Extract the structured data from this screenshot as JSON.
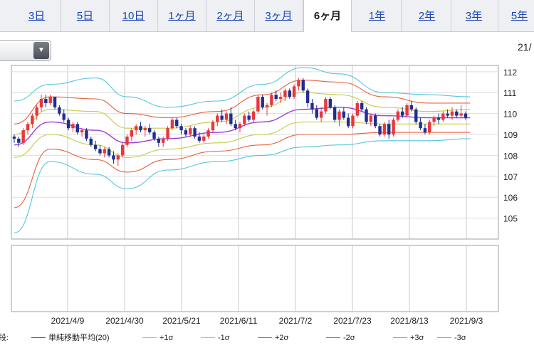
{
  "tabs": [
    {
      "label": "3日",
      "active": false
    },
    {
      "label": "5日",
      "active": false
    },
    {
      "label": "10日",
      "active": false
    },
    {
      "label": "1ヶ月",
      "active": false
    },
    {
      "label": "2ヶ月",
      "active": false
    },
    {
      "label": "3ヶ月",
      "active": false
    },
    {
      "label": "6ヶ月",
      "active": true
    },
    {
      "label": "1年",
      "active": false
    },
    {
      "label": "2年",
      "active": false
    },
    {
      "label": "3年",
      "active": false
    },
    {
      "label": "5年",
      "active": false
    }
  ],
  "header": {
    "date_label": "21/"
  },
  "dropdown": {
    "icon": "triangle-down-icon"
  },
  "legend": {
    "prefix": "段:",
    "items": [
      {
        "label": "単純移動平均(20)",
        "color": "#9a3dd6"
      },
      {
        "label": "+1σ",
        "color": "#c2cc4a"
      },
      {
        "label": "-1σ",
        "color": "#c2cc4a"
      },
      {
        "label": "+2σ",
        "color": "#e8603c"
      },
      {
        "label": "-2σ",
        "color": "#e8603c"
      },
      {
        "label": "+3σ",
        "color": "#54c6dc"
      },
      {
        "label": "-3σ",
        "color": "#54c6dc"
      }
    ]
  },
  "colors": {
    "up_candle": "#e8373c",
    "down_candle": "#1f2e8f",
    "grid": "#c8c8c8",
    "sma": "#9a3dd6",
    "sigma1": "#c2cc4a",
    "sigma2": "#e8603c",
    "sigma3": "#54c6dc"
  },
  "chart_data": {
    "type": "candlestick",
    "title": "",
    "xlabel": "",
    "ylabel": "",
    "ylim": [
      104,
      112.3
    ],
    "y_ticks": [
      105,
      106,
      107,
      108,
      109,
      110,
      111,
      112
    ],
    "x_ticks": [
      "2021/4/9",
      "2021/4/30",
      "2021/5/21",
      "2021/6/11",
      "2021/7/2",
      "2021/7/23",
      "2021/8/13",
      "2021/9/3"
    ],
    "grid": true,
    "ohlc": [
      [
        108.9,
        109.0,
        108.6,
        108.8
      ],
      [
        108.8,
        108.9,
        108.4,
        108.6
      ],
      [
        108.6,
        109.3,
        108.5,
        109.2
      ],
      [
        109.2,
        109.6,
        109.0,
        109.5
      ],
      [
        109.5,
        110.0,
        109.3,
        109.9
      ],
      [
        109.9,
        110.4,
        109.7,
        110.3
      ],
      [
        110.3,
        110.9,
        110.1,
        110.7
      ],
      [
        110.7,
        110.9,
        110.3,
        110.5
      ],
      [
        110.5,
        110.9,
        110.4,
        110.8
      ],
      [
        110.8,
        110.8,
        110.2,
        110.3
      ],
      [
        110.3,
        110.4,
        109.9,
        110.0
      ],
      [
        110.0,
        110.2,
        109.6,
        109.7
      ],
      [
        109.7,
        109.8,
        109.2,
        109.3
      ],
      [
        109.3,
        109.6,
        109.1,
        109.5
      ],
      [
        109.5,
        109.6,
        109.0,
        109.1
      ],
      [
        109.1,
        109.3,
        108.9,
        109.2
      ],
      [
        109.2,
        109.3,
        108.7,
        108.8
      ],
      [
        108.8,
        108.9,
        108.4,
        108.5
      ],
      [
        108.5,
        108.7,
        108.2,
        108.3
      ],
      [
        108.3,
        108.5,
        108.0,
        108.1
      ],
      [
        108.1,
        108.4,
        107.9,
        108.3
      ],
      [
        108.3,
        108.4,
        107.9,
        108.0
      ],
      [
        108.0,
        108.2,
        107.6,
        107.8
      ],
      [
        107.8,
        108.1,
        107.5,
        108.0
      ],
      [
        108.0,
        108.6,
        107.9,
        108.5
      ],
      [
        108.5,
        109.0,
        108.4,
        108.9
      ],
      [
        108.9,
        109.3,
        108.7,
        109.2
      ],
      [
        109.2,
        109.5,
        109.0,
        109.4
      ],
      [
        109.4,
        109.6,
        109.1,
        109.2
      ],
      [
        109.2,
        109.4,
        108.9,
        109.3
      ],
      [
        109.3,
        109.5,
        109.0,
        109.1
      ],
      [
        109.1,
        109.2,
        108.7,
        108.8
      ],
      [
        108.8,
        108.9,
        108.4,
        108.6
      ],
      [
        108.6,
        108.9,
        108.4,
        108.8
      ],
      [
        108.8,
        109.4,
        108.7,
        109.3
      ],
      [
        109.3,
        109.8,
        109.2,
        109.7
      ],
      [
        109.7,
        109.8,
        109.3,
        109.4
      ],
      [
        109.4,
        109.5,
        109.0,
        109.2
      ],
      [
        109.2,
        109.3,
        108.9,
        109.0
      ],
      [
        109.0,
        109.4,
        108.9,
        109.3
      ],
      [
        109.3,
        109.4,
        108.8,
        108.9
      ],
      [
        108.9,
        109.1,
        108.6,
        108.7
      ],
      [
        108.7,
        109.0,
        108.6,
        108.9
      ],
      [
        108.9,
        109.3,
        108.8,
        109.2
      ],
      [
        109.2,
        109.7,
        109.1,
        109.6
      ],
      [
        109.6,
        110.0,
        109.4,
        109.9
      ],
      [
        109.9,
        110.2,
        109.6,
        109.7
      ],
      [
        109.7,
        110.1,
        109.5,
        110.0
      ],
      [
        110.0,
        110.3,
        109.4,
        109.5
      ],
      [
        109.5,
        109.7,
        109.2,
        109.3
      ],
      [
        109.3,
        109.6,
        109.1,
        109.5
      ],
      [
        109.5,
        110.0,
        109.4,
        109.9
      ],
      [
        109.9,
        110.1,
        109.6,
        109.7
      ],
      [
        109.7,
        110.2,
        109.6,
        110.1
      ],
      [
        110.1,
        110.9,
        110.0,
        110.8
      ],
      [
        110.8,
        110.9,
        110.2,
        110.3
      ],
      [
        110.3,
        110.5,
        109.9,
        110.4
      ],
      [
        110.4,
        111.0,
        110.3,
        110.9
      ],
      [
        110.9,
        111.1,
        110.6,
        110.7
      ],
      [
        110.7,
        111.0,
        110.5,
        110.8
      ],
      [
        110.8,
        111.2,
        110.6,
        111.1
      ],
      [
        111.1,
        111.2,
        110.7,
        110.8
      ],
      [
        110.8,
        111.4,
        110.7,
        111.3
      ],
      [
        111.3,
        111.7,
        111.1,
        111.6
      ],
      [
        111.6,
        111.7,
        111.0,
        111.1
      ],
      [
        111.1,
        111.2,
        110.3,
        110.5
      ],
      [
        110.5,
        110.7,
        110.0,
        110.2
      ],
      [
        110.2,
        110.4,
        109.7,
        109.8
      ],
      [
        109.8,
        110.3,
        109.6,
        110.1
      ],
      [
        110.1,
        110.8,
        110.0,
        110.7
      ],
      [
        110.7,
        110.8,
        110.2,
        110.3
      ],
      [
        110.3,
        110.4,
        109.6,
        109.7
      ],
      [
        109.7,
        110.2,
        109.4,
        110.1
      ],
      [
        110.1,
        110.3,
        109.7,
        109.8
      ],
      [
        109.8,
        110.0,
        109.3,
        109.4
      ],
      [
        109.4,
        110.0,
        109.3,
        109.9
      ],
      [
        109.9,
        110.6,
        109.8,
        110.5
      ],
      [
        110.5,
        110.6,
        110.1,
        110.2
      ],
      [
        110.2,
        110.3,
        109.5,
        109.6
      ],
      [
        109.6,
        110.0,
        109.4,
        109.9
      ],
      [
        109.9,
        110.0,
        109.3,
        109.4
      ],
      [
        109.4,
        109.5,
        108.9,
        109.0
      ],
      [
        109.0,
        109.6,
        108.9,
        109.5
      ],
      [
        109.5,
        109.7,
        108.8,
        109.0
      ],
      [
        109.0,
        109.8,
        108.9,
        109.7
      ],
      [
        109.7,
        110.2,
        109.6,
        110.1
      ],
      [
        110.1,
        110.3,
        109.8,
        109.9
      ],
      [
        109.9,
        110.5,
        109.8,
        110.4
      ],
      [
        110.4,
        110.6,
        110.1,
        110.2
      ],
      [
        110.2,
        110.3,
        109.5,
        109.6
      ],
      [
        109.6,
        109.8,
        109.2,
        109.3
      ],
      [
        109.3,
        109.5,
        109.0,
        109.1
      ],
      [
        109.1,
        109.7,
        109.0,
        109.6
      ],
      [
        109.6,
        109.9,
        109.4,
        109.8
      ],
      [
        109.8,
        110.0,
        109.5,
        109.7
      ],
      [
        109.7,
        110.1,
        109.6,
        110.0
      ],
      [
        110.0,
        110.2,
        109.8,
        109.9
      ],
      [
        109.9,
        110.3,
        109.7,
        110.1
      ],
      [
        110.1,
        110.2,
        109.8,
        109.9
      ],
      [
        109.9,
        110.4,
        109.8,
        110.0
      ],
      [
        110.0,
        110.1,
        109.7,
        109.8
      ]
    ],
    "bands": {
      "sma_20": [
        [
          0,
          108.5
        ],
        [
          8,
          109.6
        ],
        [
          18,
          109.2
        ],
        [
          25,
          108.6
        ],
        [
          34,
          108.8
        ],
        [
          45,
          109.1
        ],
        [
          55,
          109.6
        ],
        [
          64,
          110.2
        ],
        [
          72,
          110.3
        ],
        [
          82,
          109.9
        ],
        [
          92,
          109.8
        ],
        [
          101,
          109.8
        ]
      ],
      "plus_1s": [
        [
          0,
          109.0
        ],
        [
          8,
          110.2
        ],
        [
          18,
          110.1
        ],
        [
          25,
          109.3
        ],
        [
          34,
          109.3
        ],
        [
          45,
          109.6
        ],
        [
          55,
          110.3
        ],
        [
          64,
          111.0
        ],
        [
          72,
          110.9
        ],
        [
          82,
          110.3
        ],
        [
          92,
          110.1
        ],
        [
          101,
          110.2
        ]
      ],
      "minus_1s": [
        [
          0,
          107.9
        ],
        [
          8,
          109.0
        ],
        [
          18,
          108.5
        ],
        [
          25,
          107.9
        ],
        [
          34,
          108.3
        ],
        [
          45,
          108.6
        ],
        [
          55,
          109.0
        ],
        [
          64,
          109.6
        ],
        [
          72,
          109.6
        ],
        [
          82,
          109.5
        ],
        [
          92,
          109.5
        ],
        [
          101,
          109.5
        ]
      ],
      "plus_2s": [
        [
          0,
          109.5
        ],
        [
          8,
          110.8
        ],
        [
          18,
          110.7
        ],
        [
          25,
          110.0
        ],
        [
          34,
          109.8
        ],
        [
          45,
          110.1
        ],
        [
          55,
          110.9
        ],
        [
          64,
          111.6
        ],
        [
          72,
          111.5
        ],
        [
          82,
          110.8
        ],
        [
          92,
          110.5
        ],
        [
          101,
          110.5
        ]
      ],
      "minus_2s": [
        [
          0,
          105.5
        ],
        [
          8,
          108.3
        ],
        [
          18,
          107.8
        ],
        [
          25,
          107.2
        ],
        [
          34,
          107.8
        ],
        [
          45,
          108.2
        ],
        [
          55,
          108.5
        ],
        [
          64,
          109.0
        ],
        [
          72,
          109.0
        ],
        [
          82,
          109.1
        ],
        [
          92,
          109.1
        ],
        [
          101,
          109.1
        ]
      ],
      "plus_3s": [
        [
          0,
          110.6
        ],
        [
          8,
          111.4
        ],
        [
          18,
          111.7
        ],
        [
          25,
          110.8
        ],
        [
          34,
          110.3
        ],
        [
          45,
          110.6
        ],
        [
          55,
          111.4
        ],
        [
          64,
          112.2
        ],
        [
          72,
          111.9
        ],
        [
          82,
          111.0
        ],
        [
          92,
          110.9
        ],
        [
          101,
          110.8
        ]
      ],
      "minus_3s": [
        [
          0,
          104.3
        ],
        [
          8,
          107.7
        ],
        [
          18,
          107.1
        ],
        [
          25,
          106.4
        ],
        [
          34,
          107.3
        ],
        [
          45,
          107.7
        ],
        [
          55,
          108.0
        ],
        [
          64,
          108.4
        ],
        [
          72,
          108.5
        ],
        [
          82,
          108.7
        ],
        [
          92,
          108.7
        ],
        [
          101,
          108.8
        ]
      ]
    }
  }
}
